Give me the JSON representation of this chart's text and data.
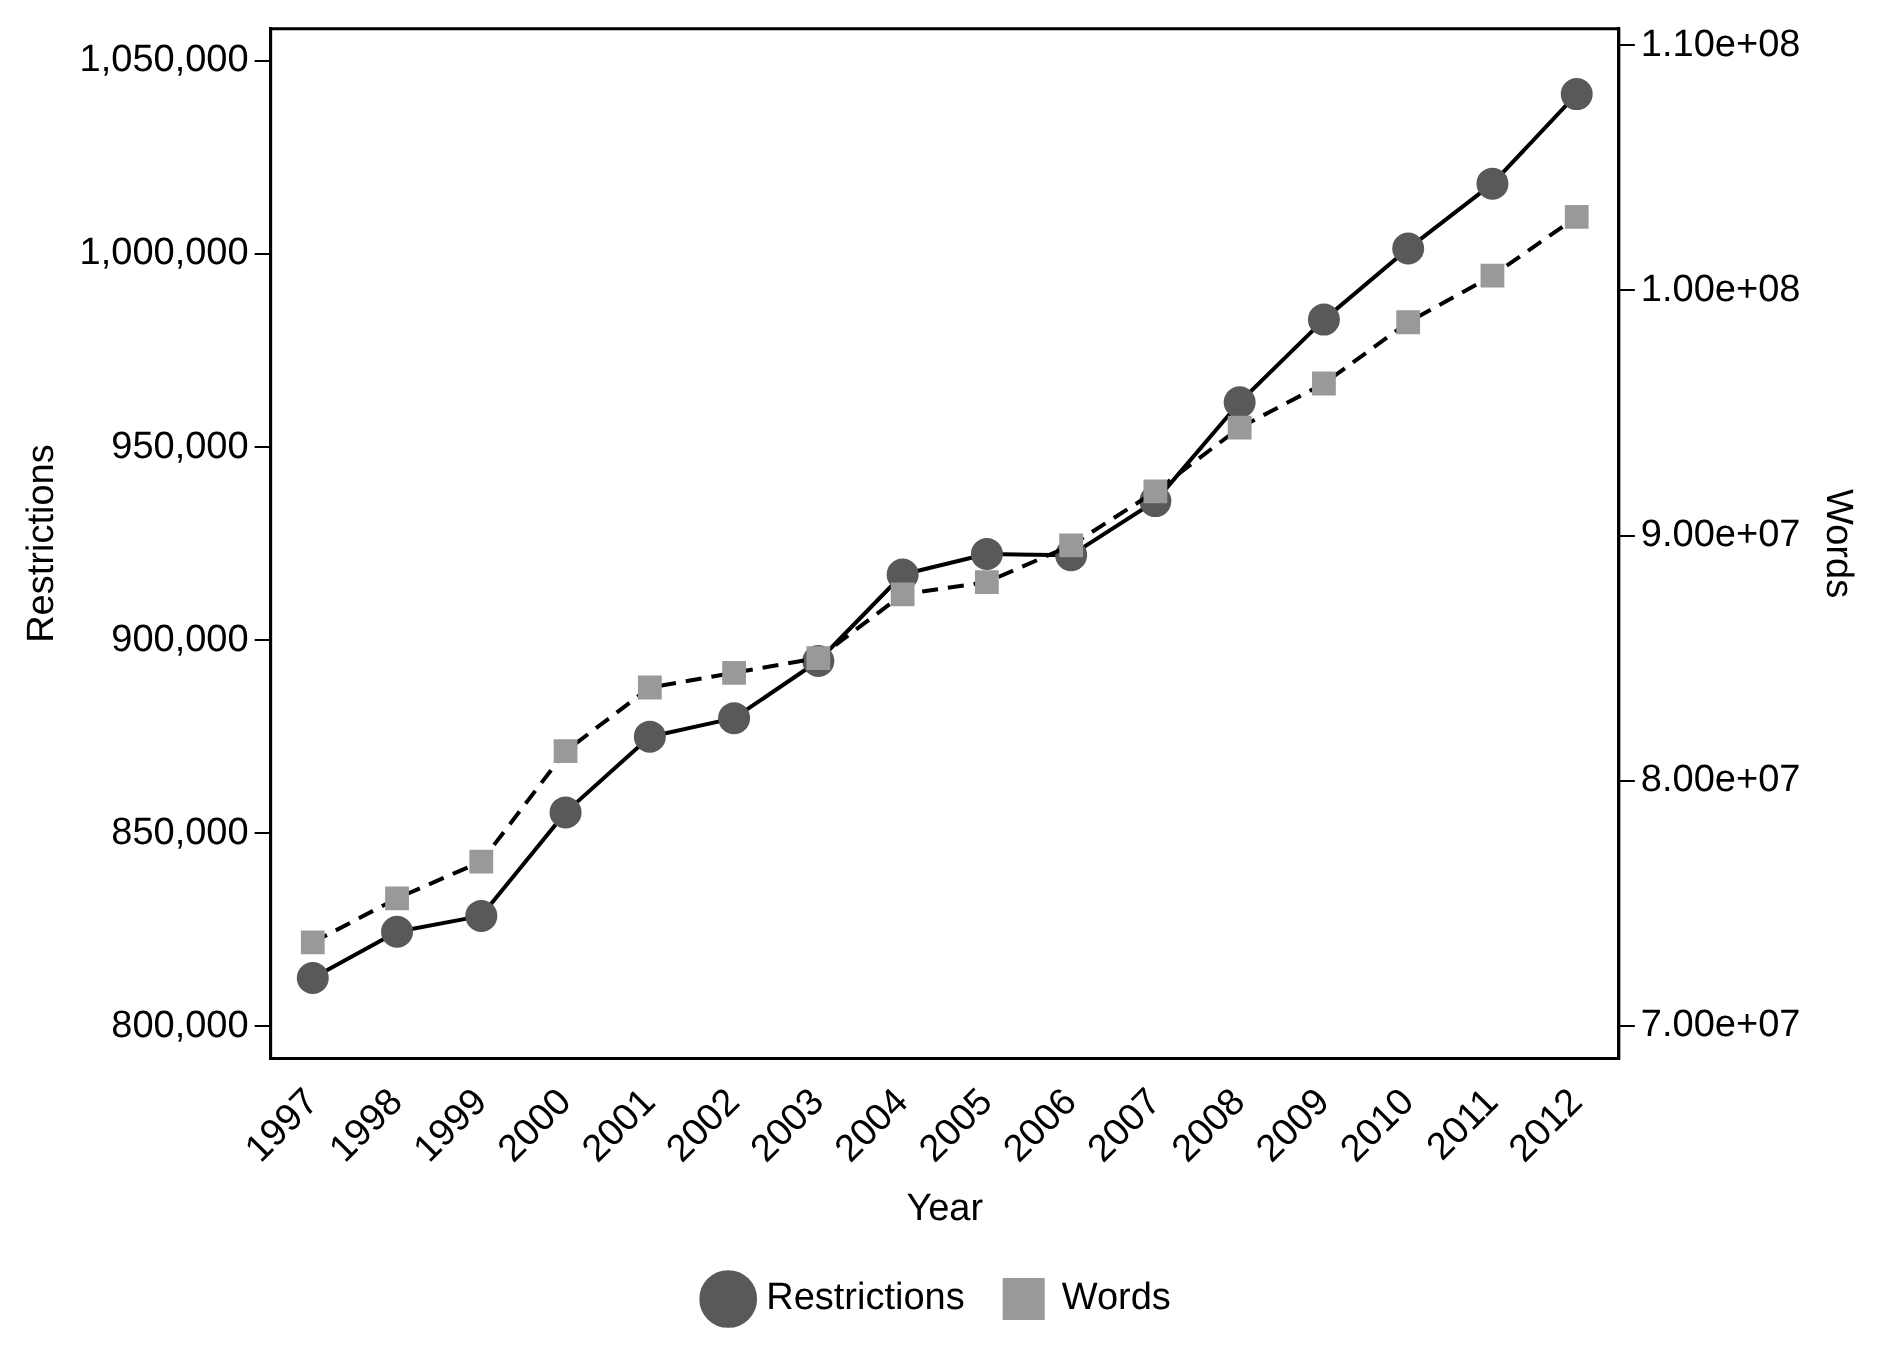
{
  "chart_data": {
    "type": "line",
    "xlabel": "Year",
    "ylabel": "Restrictions",
    "y2label": "Words",
    "categories": [
      "1997",
      "1998",
      "1999",
      "2000",
      "2001",
      "2002",
      "2003",
      "2004",
      "2005",
      "2006",
      "2007",
      "2008",
      "2009",
      "2010",
      "2011",
      "2012"
    ],
    "series": [
      {
        "name": "Restrictions",
        "color": "#595959",
        "marker": "circle",
        "line_style": "solid",
        "values": [
          812500,
          824500,
          828600,
          855400,
          875000,
          879800,
          894600,
          917000,
          922300,
          922000,
          936000,
          961600,
          983000,
          1001400,
          1018200,
          1041400
        ]
      },
      {
        "name": "Words",
        "color": "#999999",
        "marker": "square",
        "line_style": "dashed",
        "axis": "y2",
        "values": [
          73400000,
          75200000,
          76700000,
          81200000,
          83800000,
          84400000,
          85000000,
          87600000,
          88100000,
          89600000,
          91800000,
          94400000,
          96200000,
          98700000,
          100600000,
          103000000
        ]
      }
    ],
    "ylim": [
      791700,
      1058300
    ],
    "yticks": [
      {
        "value": 800000,
        "label": "800,000"
      },
      {
        "value": 850000,
        "label": "850,000"
      },
      {
        "value": 900000,
        "label": "900,000"
      },
      {
        "value": 950000,
        "label": "950,000"
      },
      {
        "value": 1000000,
        "label": "1,000,000"
      },
      {
        "value": 1050000,
        "label": "1,050,000"
      }
    ],
    "y2lim": [
      68670000,
      110670000
    ],
    "y2ticks": [
      {
        "value": 70000000,
        "label": "7.00e+07"
      },
      {
        "value": 80000000,
        "label": "8.00e+07"
      },
      {
        "value": 90000000,
        "label": "9.00e+07"
      },
      {
        "value": 100000000,
        "label": "1.00e+08"
      },
      {
        "value": 110000000,
        "label": "1.10e+08"
      }
    ],
    "grid": false,
    "legend": "bottom"
  }
}
